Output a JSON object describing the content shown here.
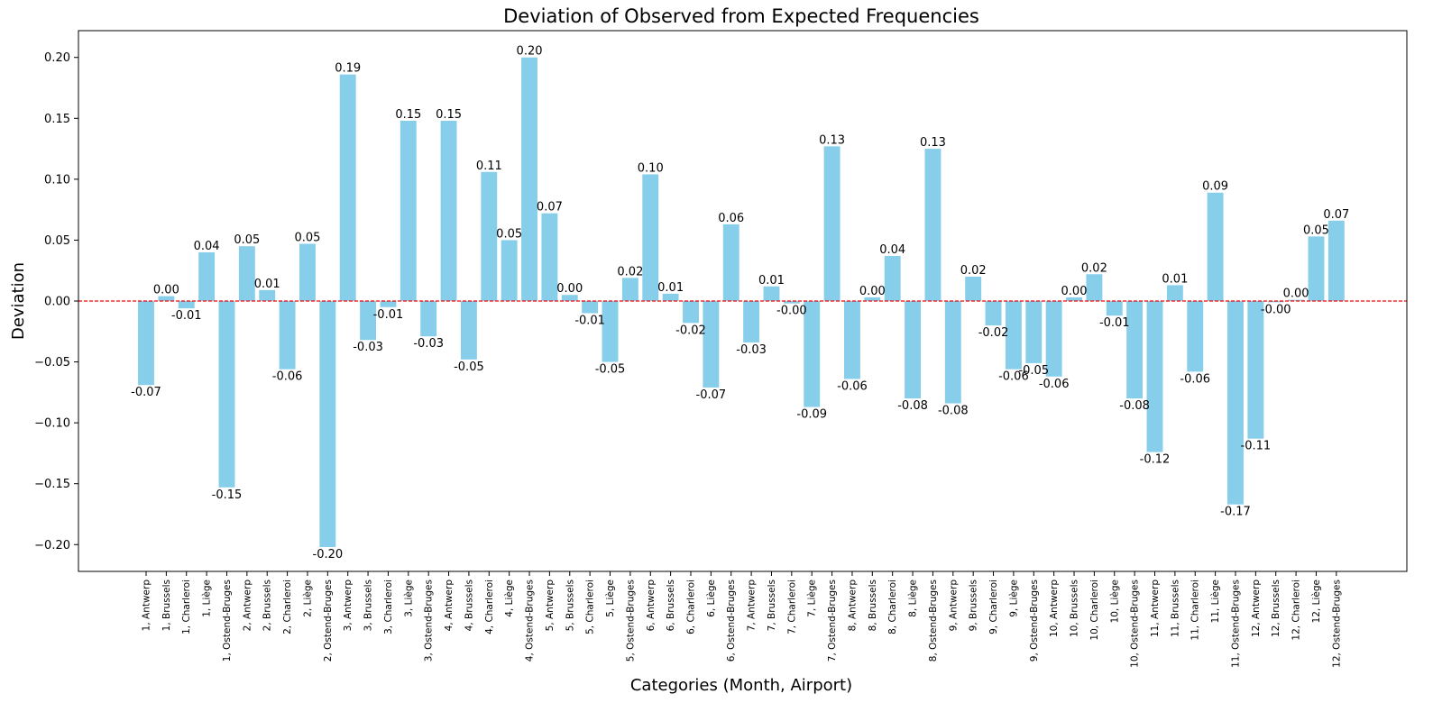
{
  "chart_data": {
    "type": "bar",
    "title": "Deviation of Observed from Expected Frequencies",
    "xlabel": "Categories (Month, Airport)",
    "ylabel": "Deviation",
    "ylim": [
      -0.222,
      0.222
    ],
    "yticks": [
      -0.2,
      -0.15,
      -0.1,
      -0.05,
      0.0,
      0.05,
      0.1,
      0.15,
      0.2
    ],
    "ytick_labels": [
      "−0.20",
      "−0.15",
      "−0.10",
      "−0.05",
      "0.00",
      "0.05",
      "0.10",
      "0.15",
      "0.20"
    ],
    "bar_color": "#87CEEB",
    "reference_line": {
      "y": 0,
      "color": "#ff0000",
      "style": "dashed"
    },
    "categories": [
      "1, Antwerp",
      "1, Brussels",
      "1, Charleroi",
      "1, Liège",
      "1, Ostend-Bruges",
      "2, Antwerp",
      "2, Brussels",
      "2, Charleroi",
      "2, Liège",
      "2, Ostend-Bruges",
      "3, Antwerp",
      "3, Brussels",
      "3, Charleroi",
      "3, Liège",
      "3, Ostend-Bruges",
      "4, Antwerp",
      "4, Brussels",
      "4, Charleroi",
      "4, Liège",
      "4, Ostend-Bruges",
      "5, Antwerp",
      "5, Brussels",
      "5, Charleroi",
      "5, Liège",
      "5, Ostend-Bruges",
      "6, Antwerp",
      "6, Brussels",
      "6, Charleroi",
      "6, Liège",
      "6, Ostend-Bruges",
      "7, Antwerp",
      "7, Brussels",
      "7, Charleroi",
      "7, Liège",
      "7, Ostend-Bruges",
      "8, Antwerp",
      "8, Brussels",
      "8, Charleroi",
      "8, Liège",
      "8, Ostend-Bruges",
      "9, Antwerp",
      "9, Brussels",
      "9, Charleroi",
      "9, Liège",
      "9, Ostend-Bruges",
      "10, Antwerp",
      "10, Brussels",
      "10, Charleroi",
      "10, Liège",
      "10, Ostend-Bruges",
      "11, Antwerp",
      "11, Brussels",
      "11, Charleroi",
      "11, Liège",
      "11, Ostend-Bruges",
      "12, Antwerp",
      "12, Brussels",
      "12, Charleroi",
      "12, Liège",
      "12, Ostend-Bruges"
    ],
    "values": [
      -0.069,
      0.004,
      -0.006,
      0.04,
      -0.153,
      0.045,
      0.009,
      -0.056,
      0.047,
      -0.202,
      0.186,
      -0.032,
      -0.005,
      0.148,
      -0.029,
      0.148,
      -0.048,
      0.106,
      0.05,
      0.2,
      0.072,
      0.005,
      -0.01,
      -0.05,
      0.019,
      0.104,
      0.006,
      -0.018,
      -0.071,
      0.063,
      -0.034,
      0.012,
      -0.002,
      -0.087,
      0.127,
      -0.064,
      0.003,
      0.037,
      -0.08,
      0.125,
      -0.084,
      0.02,
      -0.02,
      -0.056,
      -0.051,
      -0.062,
      0.003,
      0.022,
      -0.012,
      -0.08,
      -0.124,
      0.013,
      -0.058,
      0.089,
      -0.167,
      -0.113,
      -0.001,
      0.001,
      0.053,
      0.066
    ],
    "value_labels": [
      "-0.07",
      "0.00",
      "-0.01",
      "0.04",
      "-0.15",
      "0.05",
      "0.01",
      "-0.06",
      "0.05",
      "-0.20",
      "0.19",
      "-0.03",
      "-0.01",
      "0.15",
      "-0.03",
      "0.15",
      "-0.05",
      "0.11",
      "0.05",
      "0.20",
      "0.07",
      "0.00",
      "-0.01",
      "-0.05",
      "0.02",
      "0.10",
      "0.01",
      "-0.02",
      "-0.07",
      "0.06",
      "-0.03",
      "0.01",
      "-0.00",
      "-0.09",
      "0.13",
      "-0.06",
      "0.00",
      "0.04",
      "-0.08",
      "0.13",
      "-0.08",
      "0.02",
      "-0.02",
      "-0.06",
      "-0.05",
      "-0.06",
      "0.00",
      "0.02",
      "-0.01",
      "-0.08",
      "-0.12",
      "0.01",
      "-0.06",
      "0.09",
      "-0.17",
      "-0.11",
      "-0.00",
      "0.00",
      "0.05",
      "0.07"
    ]
  }
}
